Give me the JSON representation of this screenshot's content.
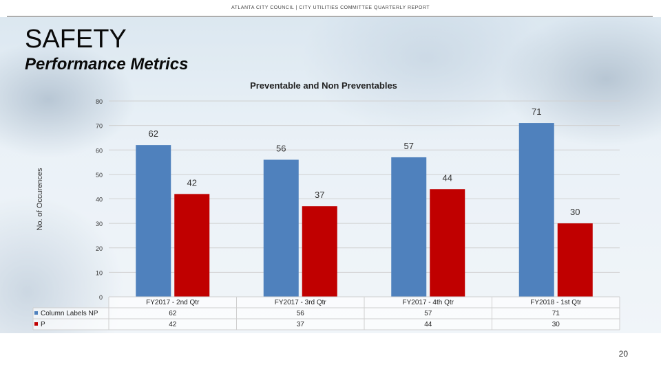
{
  "header": {
    "text": "ATLANTA CITY COUNCIL  |  CITY UTILITIES COMMITTEE QUARTERLY REPORT"
  },
  "slide": {
    "title": "SAFETY",
    "subtitle": "Performance Metrics",
    "page_number": "20"
  },
  "colors": {
    "np": "#4f81bd",
    "p": "#c00000",
    "grid": "#d0d0d0"
  },
  "chart_data": {
    "type": "bar",
    "title": "Preventable and  Non Preventables",
    "ylabel": "No. of Occurences",
    "xlabel": "",
    "ylim": [
      0,
      80
    ],
    "yticks": [
      0,
      10,
      20,
      30,
      40,
      50,
      60,
      70,
      80
    ],
    "categories": [
      "FY2017 - 2nd Qtr",
      "FY2017 - 3rd Qtr",
      "FY2017 - 4th Qtr",
      "FY2018 - 1st Qtr"
    ],
    "series": [
      {
        "name": "Column Labels NP",
        "values": [
          62,
          56,
          57,
          71
        ]
      },
      {
        "name": "P",
        "values": [
          42,
          37,
          44,
          30
        ]
      }
    ],
    "legend": "data-table-left"
  }
}
